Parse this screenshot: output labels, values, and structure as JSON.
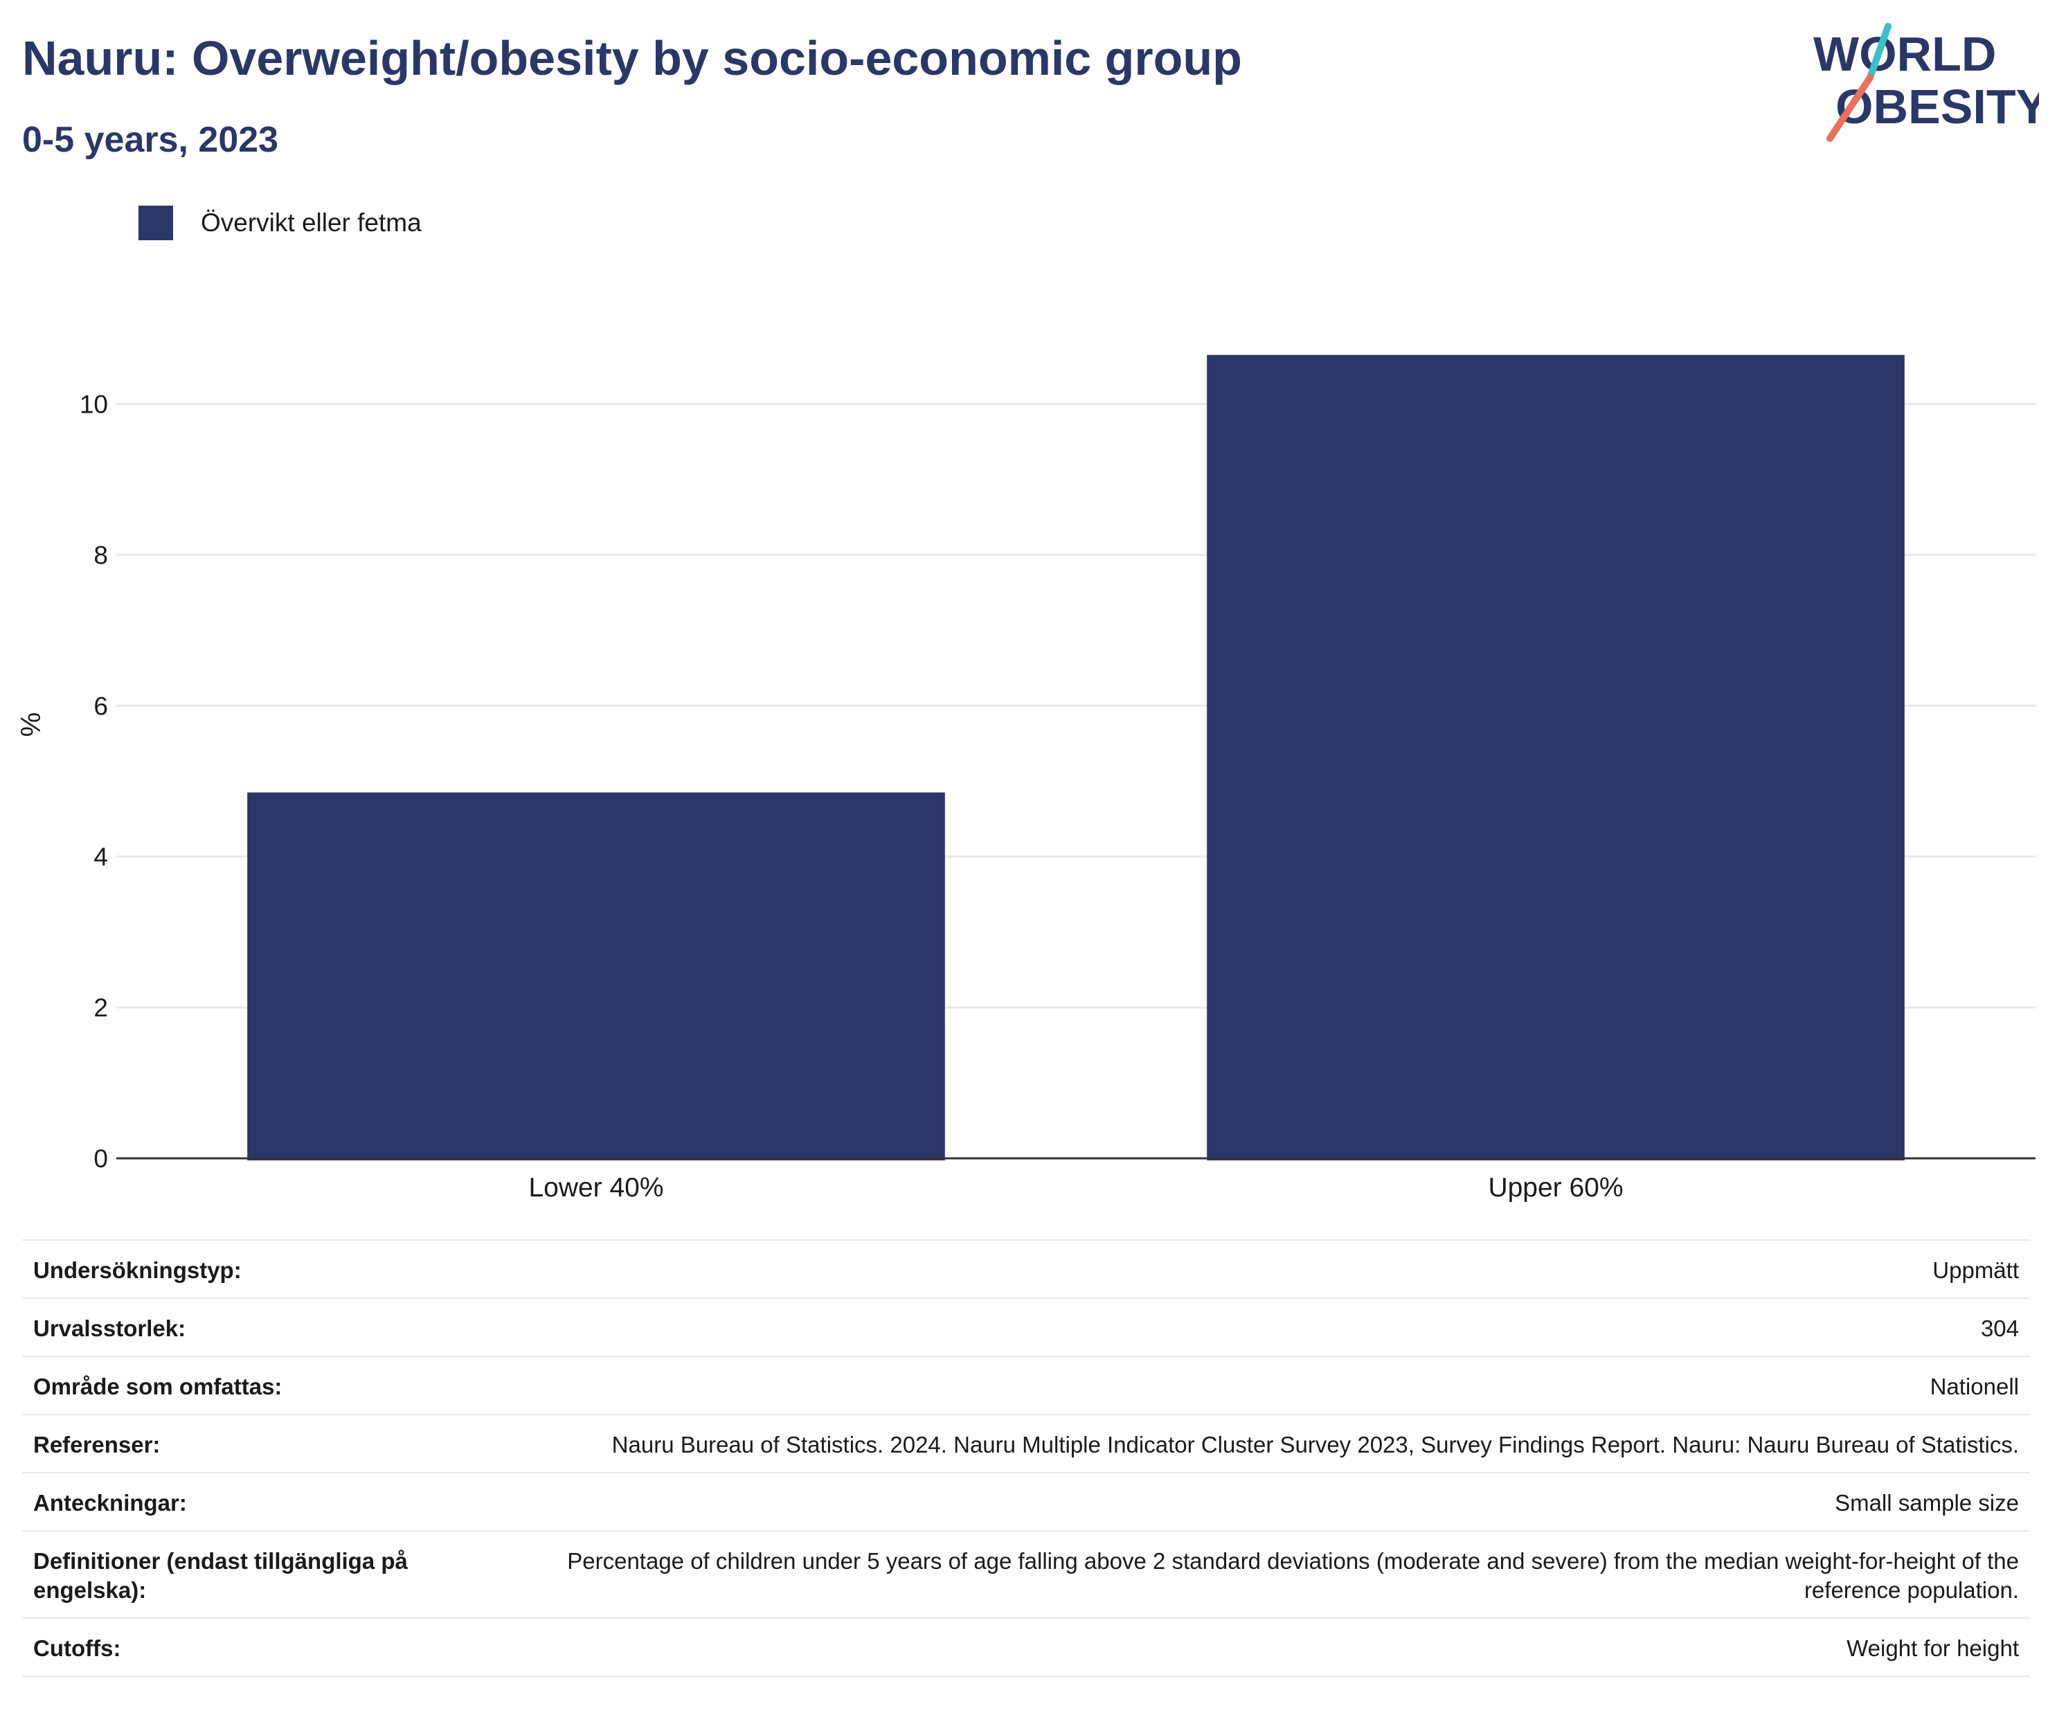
{
  "header": {
    "title": "Nauru: Overweight/obesity by socio-economic group",
    "subtitle": "0-5 years, 2023"
  },
  "logo": {
    "line1": "WORLD",
    "line2": "OBESITY",
    "colors": {
      "text": "#2b3766",
      "slash_top": "#3cbfc6",
      "slash_bottom": "#e8705f"
    }
  },
  "legend": {
    "label": "Övervikt eller fetma"
  },
  "colors": {
    "bar": "#2b3766",
    "grid": "#e8e8e8",
    "axis": "#333333"
  },
  "chart_data": {
    "type": "bar",
    "categories": [
      "Lower 40%",
      "Upper 60%"
    ],
    "series": [
      {
        "name": "Övervikt eller fetma",
        "values": [
          4.85,
          10.65
        ]
      }
    ],
    "ylabel": "%",
    "xlabel": "",
    "ylim": [
      0,
      11.5
    ],
    "yticks": [
      0,
      2,
      4,
      6,
      8,
      10
    ],
    "grid": true,
    "legend_position": "top-left"
  },
  "info": [
    {
      "key": "Undersökningstyp:",
      "value": "Uppmätt"
    },
    {
      "key": "Urvalsstorlek:",
      "value": "304"
    },
    {
      "key": "Område som omfattas:",
      "value": "Nationell"
    },
    {
      "key": "Referenser:",
      "value": "Nauru Bureau of Statistics. 2024. Nauru Multiple Indicator Cluster Survey 2023, Survey Findings Report. Nauru: Nauru Bureau of Statistics."
    },
    {
      "key": "Anteckningar:",
      "value": "Small sample size"
    },
    {
      "key": "Definitioner (endast tillgängliga på engelska):",
      "value": "Percentage of children under 5 years of age falling above 2 standard deviations (moderate and severe) from the median weight-for-height of the reference population."
    },
    {
      "key": "Cutoffs:",
      "value": "Weight for height"
    }
  ]
}
